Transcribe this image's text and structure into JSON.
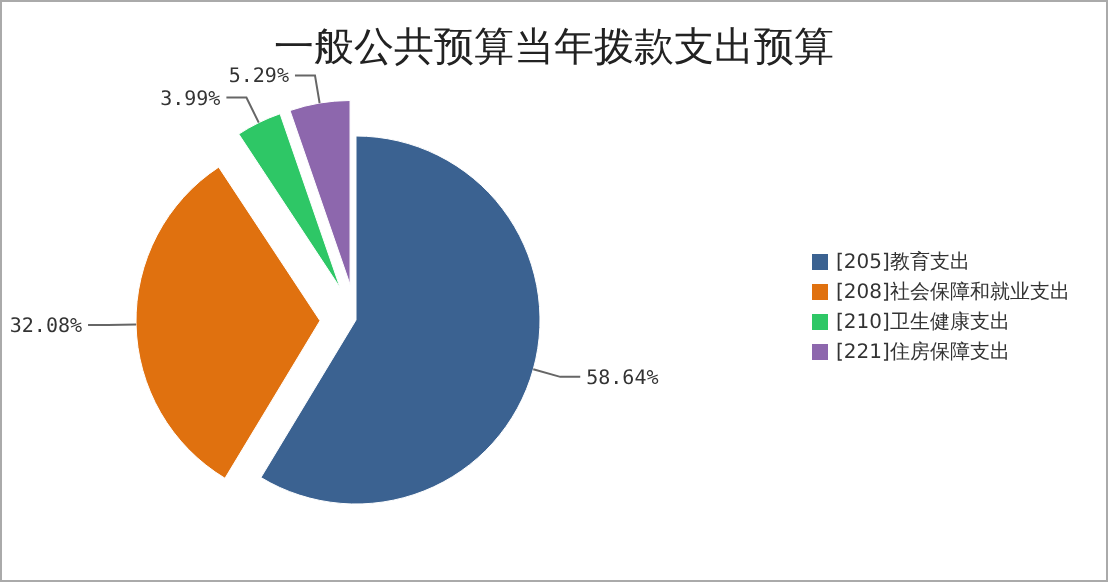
{
  "chart_data": {
    "type": "pie",
    "title": "一般公共预算当年拨款支出预算",
    "categories": [
      "[205]教育支出",
      "[208]社会保障和就业支出",
      "[210]卫生健康支出",
      "[221]住房保障支出"
    ],
    "values": [
      58.64,
      32.08,
      3.99,
      5.29
    ],
    "colors": [
      "#3b6291",
      "#e0710f",
      "#2ec766",
      "#8d67ad"
    ],
    "value_labels": [
      "58.64%",
      "32.08%",
      "3.99%",
      "5.29%"
    ],
    "legend": "right"
  }
}
